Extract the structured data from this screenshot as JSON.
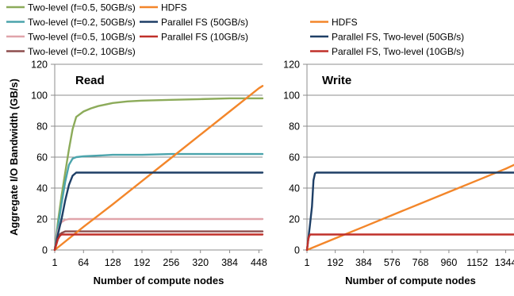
{
  "chart_data": [
    {
      "type": "line",
      "title": "Read",
      "xlabel": "Number of compute nodes",
      "ylabel": "Aggregate I/O Bandwidth (GB/s)",
      "xlim": [
        1,
        456
      ],
      "ylim": [
        0,
        120
      ],
      "xticks": [
        1,
        64,
        128,
        192,
        256,
        320,
        384,
        448
      ],
      "xtick_labels": [
        "1",
        "64",
        "128",
        "192",
        "256",
        "320",
        "384",
        "448"
      ],
      "yticks": [
        0,
        20,
        40,
        60,
        80,
        100,
        120
      ],
      "ytick_labels": [
        "0",
        "20",
        "40",
        "60",
        "80",
        "100",
        "120"
      ],
      "grid": "horizontal",
      "legend": "top-left",
      "series": [
        {
          "name": "Two-level (f=0.5, 50GB/s)",
          "color": "#8cab5a",
          "x": [
            1,
            8,
            16,
            24,
            32,
            40,
            48,
            64,
            80,
            96,
            128,
            160,
            192,
            256,
            320,
            384,
            448,
            456
          ],
          "y": [
            0,
            18,
            35,
            50,
            65,
            78,
            86,
            89.5,
            91.5,
            93,
            95,
            96,
            96.5,
            97,
            97.5,
            98,
            98,
            98
          ]
        },
        {
          "name": "Two-level (f=0.2, 50GB/s)",
          "color": "#4ba4ac",
          "x": [
            1,
            8,
            16,
            24,
            32,
            40,
            48,
            64,
            96,
            128,
            192,
            256,
            320,
            384,
            456
          ],
          "y": [
            0,
            15,
            30,
            44,
            55,
            59,
            60,
            60.5,
            61,
            61.5,
            61.5,
            62,
            62,
            62,
            62
          ]
        },
        {
          "name": "Two-level (f=0.5, 10GB/s)",
          "color": "#e0a4aa",
          "x": [
            1,
            8,
            12,
            16,
            24,
            32,
            64,
            128,
            256,
            456
          ],
          "y": [
            0,
            12,
            16,
            18,
            19.5,
            20,
            20,
            20,
            20,
            20
          ]
        },
        {
          "name": "Two-level (f=0.2, 10GB/s)",
          "color": "#8d4e4e",
          "x": [
            1,
            8,
            16,
            24,
            32,
            64,
            128,
            256,
            456
          ],
          "y": [
            0,
            9,
            11,
            12,
            12,
            12,
            12,
            12,
            12
          ]
        },
        {
          "name": "HDFS",
          "color": "#f3862a",
          "x": [
            1,
            64,
            128,
            192,
            256,
            320,
            384,
            448,
            456
          ],
          "y": [
            0,
            15,
            29.5,
            44.5,
            59.5,
            74.5,
            89.5,
            104.5,
            106
          ]
        },
        {
          "name": "Parallel FS (50GB/s)",
          "color": "#1e3f66",
          "x": [
            1,
            8,
            16,
            24,
            32,
            40,
            48,
            64,
            128,
            256,
            456
          ],
          "y": [
            0,
            10,
            20,
            32,
            42,
            48,
            50,
            50,
            50,
            50,
            50
          ]
        },
        {
          "name": "Parallel FS (10GB/s)",
          "color": "#c0302a",
          "x": [
            1,
            8,
            12,
            16,
            32,
            64,
            128,
            256,
            456
          ],
          "y": [
            0,
            7,
            9,
            10,
            10,
            10,
            10,
            10,
            10
          ]
        }
      ]
    },
    {
      "type": "line",
      "title": "Write",
      "xlabel": "Number of compute nodes",
      "ylabel": "",
      "xlim": [
        1,
        1400
      ],
      "ylim": [
        0,
        120
      ],
      "xticks": [
        1,
        192,
        384,
        576,
        768,
        960,
        1152,
        1344
      ],
      "xtick_labels": [
        "1",
        "192",
        "384",
        "576",
        "768",
        "960",
        "1152",
        "1344"
      ],
      "yticks": [
        0,
        20,
        40,
        60,
        80,
        100,
        120
      ],
      "ytick_labels": [
        "0",
        "20",
        "40",
        "60",
        "80",
        "100",
        "120"
      ],
      "grid": "horizontal",
      "legend": "top-left",
      "series": [
        {
          "name": "HDFS",
          "color": "#f3862a",
          "x": [
            1,
            192,
            384,
            576,
            768,
            960,
            1152,
            1344,
            1400
          ],
          "y": [
            0,
            7.5,
            15,
            22.5,
            30,
            37.5,
            45,
            52.5,
            55
          ]
        },
        {
          "name": "Parallel FS, Two-level (50GB/s)",
          "color": "#1e3f66",
          "x": [
            1,
            20,
            35,
            45,
            55,
            64,
            128,
            768,
            1400
          ],
          "y": [
            0,
            15,
            28,
            45,
            49.5,
            50,
            50,
            50,
            50
          ]
        },
        {
          "name": "Parallel FS, Two-level (10GB/s)",
          "color": "#c0302a",
          "x": [
            1,
            10,
            16,
            24,
            32,
            64,
            768,
            1400
          ],
          "y": [
            0,
            7,
            9,
            10,
            10,
            10,
            10,
            10
          ]
        }
      ]
    }
  ]
}
